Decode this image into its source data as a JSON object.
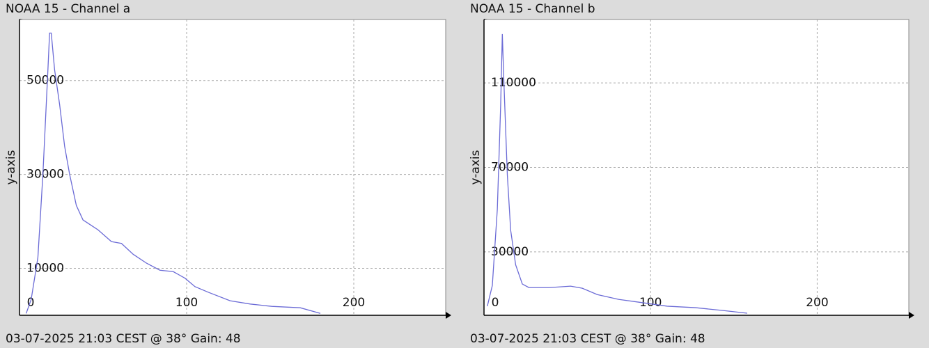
{
  "chart_data": [
    {
      "type": "line",
      "title": "NOAA 15 - Channel a",
      "y_label": "y-axis",
      "caption": "03-07-2025 21:03 CEST @ 38° Gain: 48",
      "x": [
        4,
        7,
        11,
        14,
        17,
        18,
        19,
        21,
        24,
        27,
        30,
        34,
        38,
        47,
        55,
        61,
        68,
        76,
        84,
        92,
        99,
        105,
        113,
        126,
        138,
        151,
        168,
        180
      ],
      "values": [
        400,
        3400,
        12300,
        30000,
        52300,
        60100,
        60100,
        52300,
        44900,
        36000,
        30000,
        23400,
        20300,
        18200,
        15700,
        15300,
        13000,
        11100,
        9600,
        9300,
        7900,
        6100,
        4900,
        3100,
        2400,
        1900,
        1600,
        400
      ],
      "color": "#6b6bd6",
      "xlim": [
        0,
        255
      ],
      "ylim": [
        0,
        63000
      ],
      "xticks": [
        0,
        100,
        200
      ],
      "yticks": [
        10000,
        30000,
        50000
      ],
      "grid": true
    },
    {
      "type": "line",
      "title": "NOAA 15 - Channel b",
      "y_label": "y-axis",
      "caption": "03-07-2025 21:03 CEST @ 38° Gain: 48",
      "x": [
        2,
        5,
        8,
        10,
        11,
        12,
        14,
        16,
        19,
        23,
        27,
        39,
        52,
        59,
        68,
        81,
        93,
        110,
        127,
        143,
        158
      ],
      "values": [
        4300,
        14100,
        50200,
        99300,
        133100,
        109200,
        66600,
        40300,
        23900,
        14800,
        13100,
        13100,
        13800,
        12800,
        9800,
        7500,
        6200,
        4300,
        3600,
        2300,
        1000
      ],
      "color": "#6b6bd6",
      "xlim": [
        0,
        255
      ],
      "ylim": [
        0,
        140000
      ],
      "xticks": [
        0,
        100,
        200
      ],
      "yticks": [
        30000,
        70000,
        110000
      ],
      "grid": true
    }
  ]
}
